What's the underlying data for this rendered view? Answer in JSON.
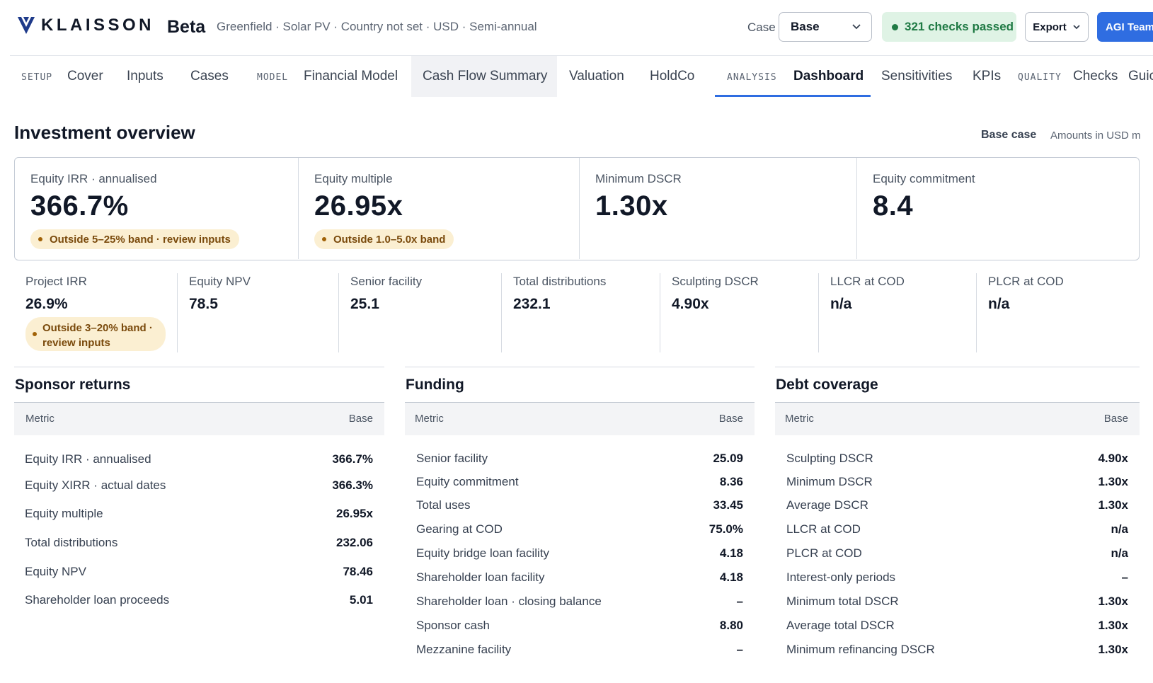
{
  "header": {
    "logo_text": "KLAISSON",
    "beta_label": "Beta",
    "subtitle": "Greenfield · Solar PV · Country not set · USD · Semi-annual",
    "case_label": "Case",
    "case_value": "Base",
    "checks_label": "321 checks passed",
    "export_label": "Export",
    "team_label": "AGI Team",
    "colors": {
      "accent": "#2f6de1",
      "success_bg": "#dff3e5",
      "success_text": "#1f7a44",
      "warning_bg": "#fbefd2",
      "warning_text": "#7a4a0c"
    }
  },
  "nav": {
    "groups": {
      "setup": "SETUP",
      "model": "MODEL",
      "analysis": "ANALYSIS",
      "quality": "QUALITY"
    },
    "tabs": {
      "cover": "Cover",
      "inputs": "Inputs",
      "cases": "Cases",
      "financial_model": "Financial Model",
      "cash_flow_summary": "Cash Flow Summary",
      "valuation": "Valuation",
      "holdco": "HoldCo",
      "dashboard": "Dashboard",
      "sensitivities": "Sensitivities",
      "kpis": "KPIs",
      "checks": "Checks",
      "guide": "Guic"
    },
    "active_tab": "Dashboard"
  },
  "overview": {
    "title": "Investment overview",
    "case": "Base case",
    "amounts_note": "Amounts in USD m",
    "kpis": [
      {
        "label": "Equity IRR · annualised",
        "value": "366.7%",
        "warning": "Outside 5–25% band · review inputs"
      },
      {
        "label": "Equity multiple",
        "value": "26.95x",
        "warning": "Outside 1.0–5.0x band"
      },
      {
        "label": "Minimum DSCR",
        "value": "1.30x"
      },
      {
        "label": "Equity commitment",
        "value": "8.4"
      }
    ],
    "secondary": [
      {
        "label": "Project IRR",
        "value": "26.9%",
        "warning_line1": "Outside 3–20% band ·",
        "warning_line2": "review inputs"
      },
      {
        "label": "Equity NPV",
        "value": "78.5"
      },
      {
        "label": "Senior facility",
        "value": "25.1"
      },
      {
        "label": "Total distributions",
        "value": "232.1"
      },
      {
        "label": "Sculpting DSCR",
        "value": "4.90x"
      },
      {
        "label": "LLCR at COD",
        "value": "n/a"
      },
      {
        "label": "PLCR at COD",
        "value": "n/a"
      }
    ]
  },
  "tables": {
    "sponsor_returns": {
      "title": "Sponsor returns",
      "col_metric": "Metric",
      "col_value": "Base",
      "rows": [
        {
          "metric": "Equity IRR · annualised",
          "value": "366.7%"
        },
        {
          "metric": "Equity XIRR · actual dates",
          "value": "366.3%"
        },
        {
          "metric": "Equity multiple",
          "value": "26.95x"
        },
        {
          "metric": "Total distributions",
          "value": "232.06"
        },
        {
          "metric": "Equity NPV",
          "value": "78.46"
        },
        {
          "metric": "Shareholder loan proceeds",
          "value": "5.01"
        }
      ]
    },
    "funding": {
      "title": "Funding",
      "col_metric": "Metric",
      "col_value": "Base",
      "rows": [
        {
          "metric": "Senior facility",
          "value": "25.09"
        },
        {
          "metric": "Equity commitment",
          "value": "8.36"
        },
        {
          "metric": "Total uses",
          "value": "33.45"
        },
        {
          "metric": "Gearing at COD",
          "value": "75.0%"
        },
        {
          "metric": "Equity bridge loan facility",
          "value": "4.18"
        },
        {
          "metric": "Shareholder loan facility",
          "value": "4.18"
        },
        {
          "metric": "Shareholder loan · closing balance",
          "value": "–"
        },
        {
          "metric": "Sponsor cash",
          "value": "8.80"
        },
        {
          "metric": "Mezzanine facility",
          "value": "–"
        }
      ]
    },
    "debt_coverage": {
      "title": "Debt coverage",
      "col_metric": "Metric",
      "col_value": "Base",
      "rows": [
        {
          "metric": "Sculpting DSCR",
          "value": "4.90x"
        },
        {
          "metric": "Minimum DSCR",
          "value": "1.30x"
        },
        {
          "metric": "Average DSCR",
          "value": "1.30x"
        },
        {
          "metric": "LLCR at COD",
          "value": "n/a"
        },
        {
          "metric": "PLCR at COD",
          "value": "n/a"
        },
        {
          "metric": "Interest-only periods",
          "value": "–"
        },
        {
          "metric": "Minimum total DSCR",
          "value": "1.30x"
        },
        {
          "metric": "Average total DSCR",
          "value": "1.30x"
        },
        {
          "metric": "Minimum refinancing DSCR",
          "value": "1.30x"
        }
      ]
    }
  }
}
